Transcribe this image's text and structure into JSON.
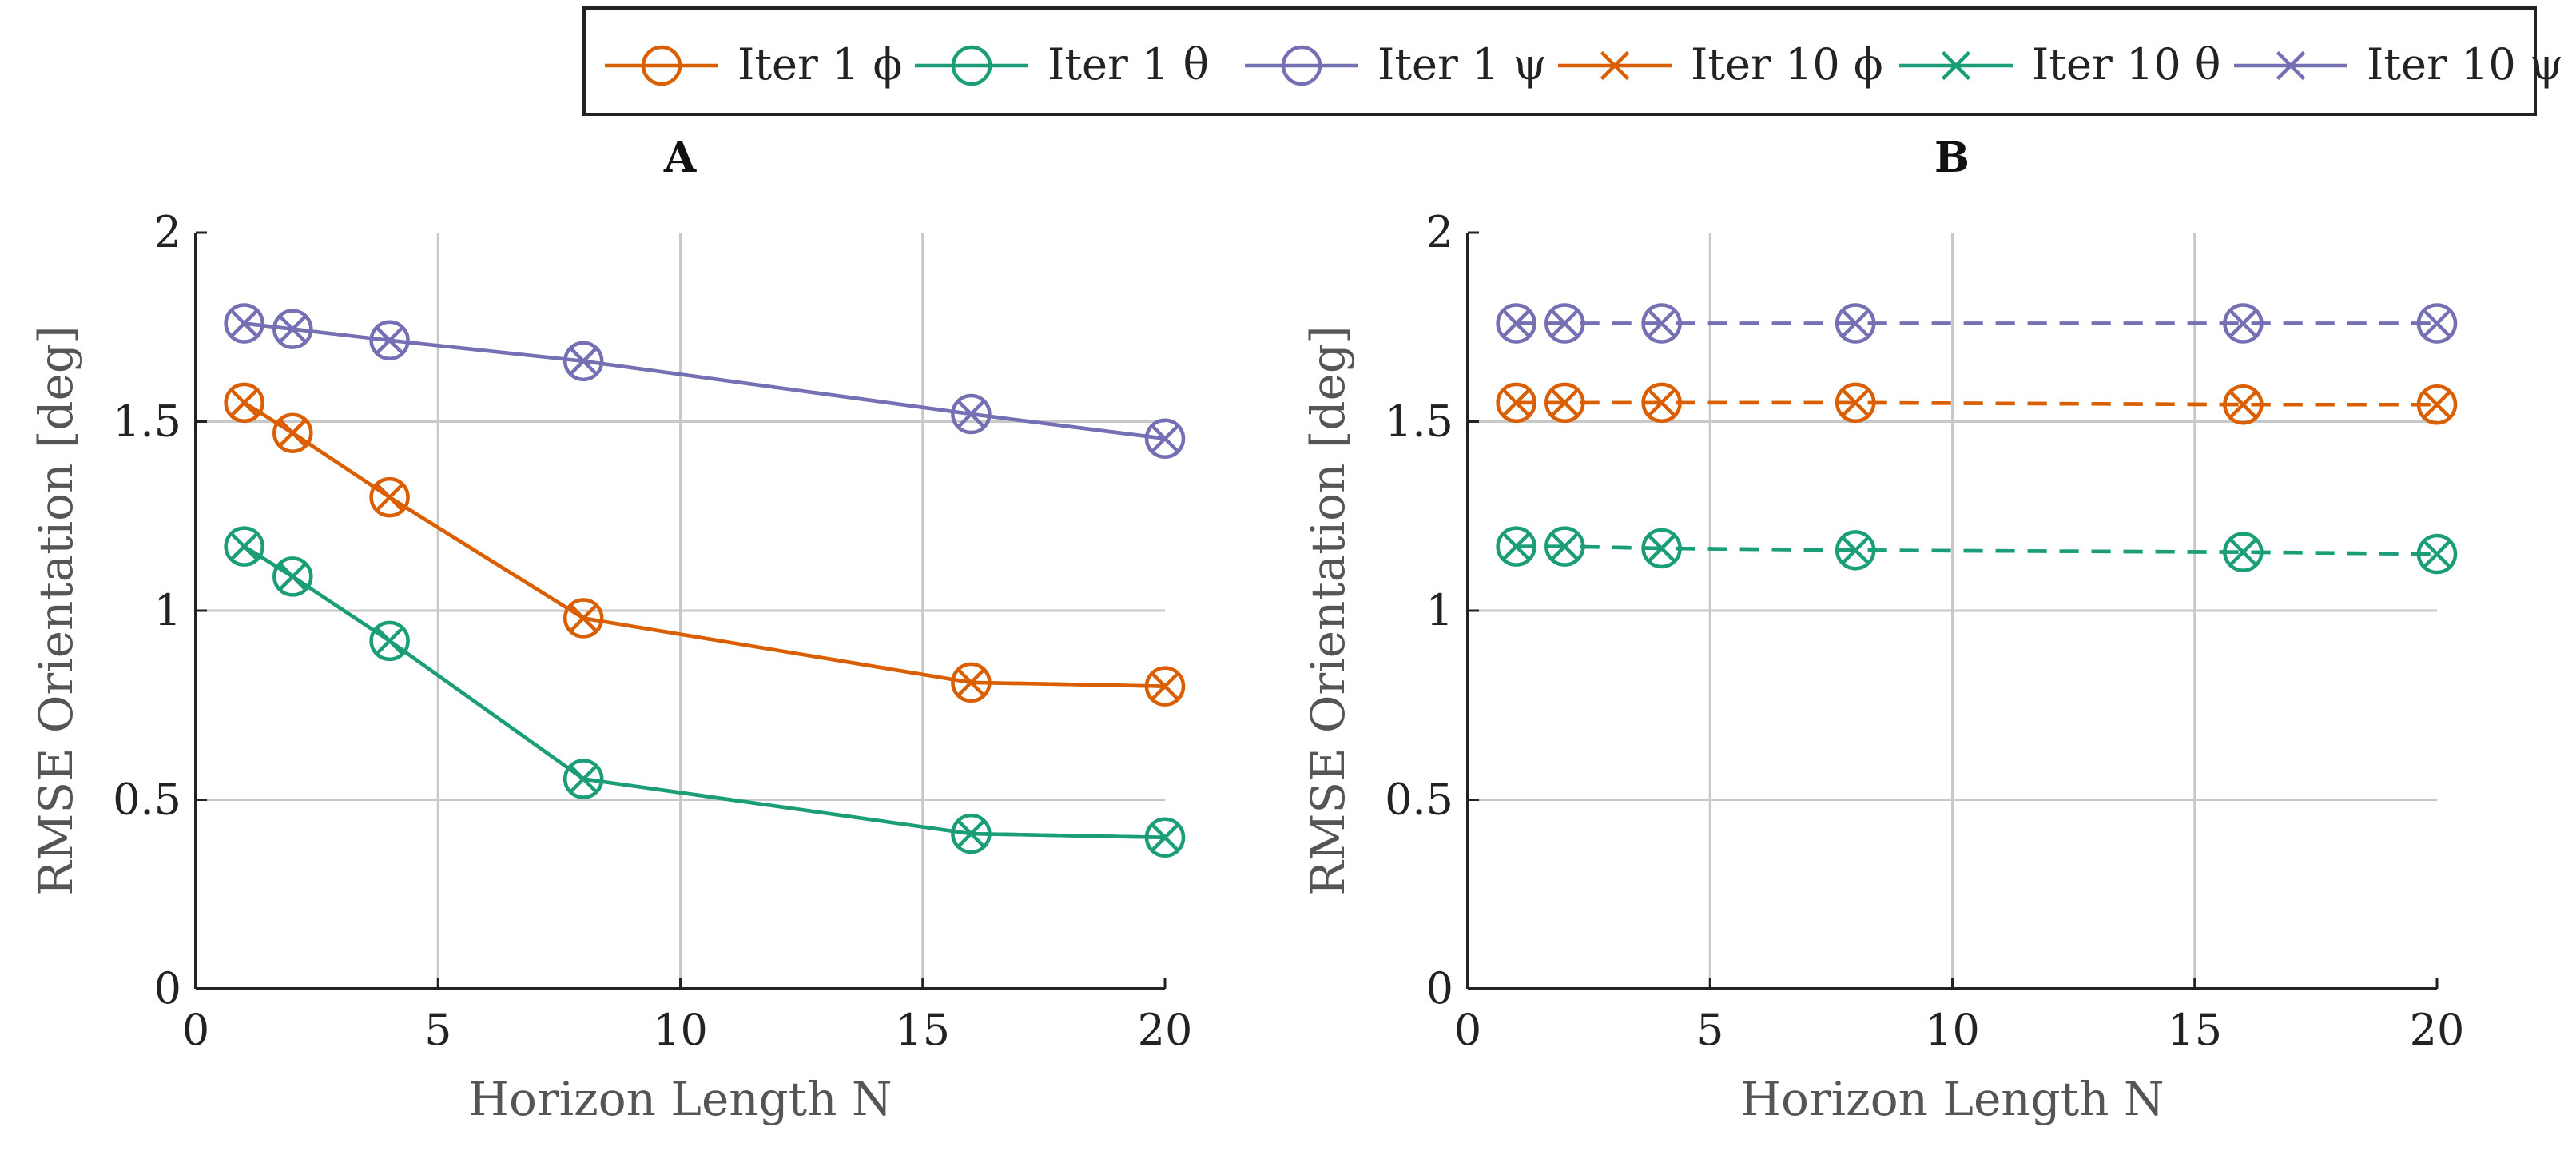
{
  "legend": {
    "placement": "top-center",
    "entries": [
      {
        "label": "Iter 1 ϕ",
        "color": "#d95f02",
        "marker": "circle",
        "linestyle": "solid"
      },
      {
        "label": "Iter 1 θ",
        "color": "#1b9e77",
        "marker": "circle",
        "linestyle": "solid"
      },
      {
        "label": "Iter 1 ψ",
        "color": "#7570b3",
        "marker": "circle",
        "linestyle": "solid"
      },
      {
        "label": "Iter 10 ϕ",
        "color": "#d95f02",
        "marker": "x",
        "linestyle": "dashed"
      },
      {
        "label": "Iter 10 θ",
        "color": "#1b9e77",
        "marker": "x",
        "linestyle": "dashed"
      },
      {
        "label": "Iter 10 ψ",
        "color": "#7570b3",
        "marker": "x",
        "linestyle": "dashed"
      }
    ]
  },
  "chart_data": [
    {
      "type": "line",
      "title": "A",
      "xlabel": "Horizon Length N",
      "ylabel": "RMSE Orientation [deg]",
      "xlim": [
        0,
        20
      ],
      "ylim": [
        0,
        2
      ],
      "xticks": [
        0,
        5,
        10,
        15,
        20
      ],
      "yticks": [
        0,
        0.5,
        1,
        1.5,
        2
      ],
      "xtick_labels": [
        "0",
        "5",
        "10",
        "15",
        "20"
      ],
      "ytick_labels": [
        "0",
        "0.5",
        "1",
        "1.5",
        "2"
      ],
      "grid": true,
      "x": [
        1,
        2,
        4,
        8,
        16,
        20
      ],
      "series": [
        {
          "name": "Iter 1 ϕ",
          "color": "#d95f02",
          "marker": "circle",
          "linestyle": "solid",
          "values": [
            1.55,
            1.47,
            1.3,
            0.98,
            0.81,
            0.8
          ]
        },
        {
          "name": "Iter 1 θ",
          "color": "#1b9e77",
          "marker": "circle",
          "linestyle": "solid",
          "values": [
            1.17,
            1.09,
            0.92,
            0.555,
            0.41,
            0.4
          ]
        },
        {
          "name": "Iter 1 ψ",
          "color": "#7570b3",
          "marker": "circle",
          "linestyle": "solid",
          "values": [
            1.76,
            1.745,
            1.715,
            1.66,
            1.52,
            1.455
          ]
        },
        {
          "name": "Iter 10 ϕ",
          "color": "#d95f02",
          "marker": "x",
          "linestyle": "solid",
          "values": [
            1.55,
            1.47,
            1.3,
            0.98,
            0.81,
            0.8
          ]
        },
        {
          "name": "Iter 10 θ",
          "color": "#1b9e77",
          "marker": "x",
          "linestyle": "solid",
          "values": [
            1.17,
            1.09,
            0.92,
            0.555,
            0.41,
            0.4
          ]
        },
        {
          "name": "Iter 10 ψ",
          "color": "#7570b3",
          "marker": "x",
          "linestyle": "solid",
          "values": [
            1.76,
            1.745,
            1.715,
            1.66,
            1.52,
            1.455
          ]
        }
      ]
    },
    {
      "type": "line",
      "title": "B",
      "xlabel": "Horizon Length N",
      "ylabel": "RMSE Orientation [deg]",
      "xlim": [
        0,
        20
      ],
      "ylim": [
        0,
        2
      ],
      "xticks": [
        0,
        5,
        10,
        15,
        20
      ],
      "yticks": [
        0,
        0.5,
        1,
        1.5,
        2
      ],
      "xtick_labels": [
        "0",
        "5",
        "10",
        "15",
        "20"
      ],
      "ytick_labels": [
        "0",
        "0.5",
        "1",
        "1.5",
        "2"
      ],
      "grid": true,
      "x": [
        1,
        2,
        4,
        8,
        16,
        20
      ],
      "series": [
        {
          "name": "Iter 1 ϕ",
          "color": "#d95f02",
          "marker": "circle",
          "linestyle": "dashed",
          "values": [
            1.55,
            1.55,
            1.55,
            1.55,
            1.545,
            1.545
          ]
        },
        {
          "name": "Iter 1 θ",
          "color": "#1b9e77",
          "marker": "circle",
          "linestyle": "dashed",
          "values": [
            1.17,
            1.17,
            1.165,
            1.16,
            1.155,
            1.15
          ]
        },
        {
          "name": "Iter 1 ψ",
          "color": "#7570b3",
          "marker": "circle",
          "linestyle": "dashed",
          "values": [
            1.76,
            1.76,
            1.76,
            1.76,
            1.76,
            1.76
          ]
        },
        {
          "name": "Iter 10 ϕ",
          "color": "#d95f02",
          "marker": "x",
          "linestyle": "dashed",
          "values": [
            1.55,
            1.55,
            1.55,
            1.55,
            1.545,
            1.545
          ]
        },
        {
          "name": "Iter 10 θ",
          "color": "#1b9e77",
          "marker": "x",
          "linestyle": "dashed",
          "values": [
            1.17,
            1.17,
            1.165,
            1.16,
            1.155,
            1.15
          ]
        },
        {
          "name": "Iter 10 ψ",
          "color": "#7570b3",
          "marker": "x",
          "linestyle": "dashed",
          "values": [
            1.76,
            1.76,
            1.76,
            1.76,
            1.76,
            1.76
          ]
        }
      ]
    }
  ]
}
